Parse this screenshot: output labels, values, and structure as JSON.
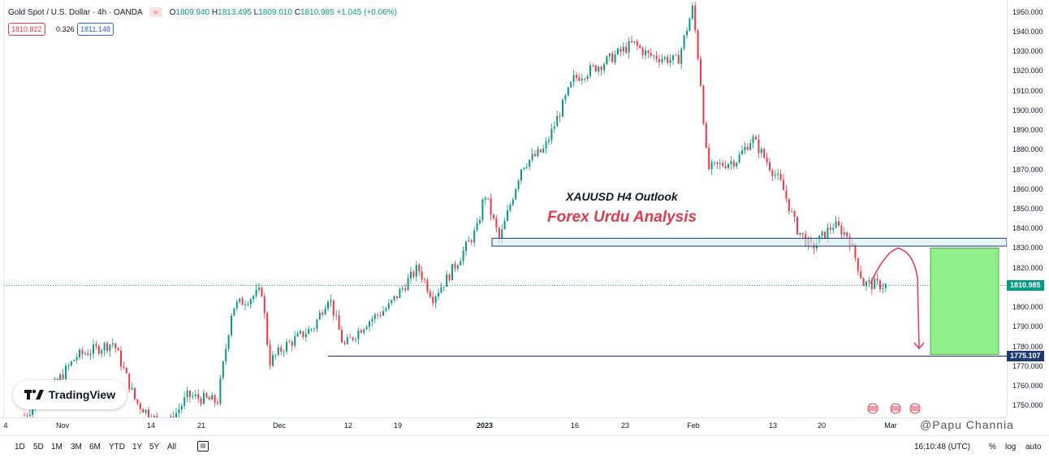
{
  "header": {
    "symbol": "Gold Spot / U.S. Dollar · 4h · OANDA",
    "ohlc": {
      "o_label": "O",
      "o": "1809.940",
      "h_label": "H",
      "h": "1813.495",
      "l_label": "L",
      "l": "1809.010",
      "c_label": "C",
      "c": "1810.985",
      "change": "+1.045 (+0.06%)"
    },
    "bid": "1810.822",
    "spread": "0.326",
    "ask": "1811.148"
  },
  "annotations": {
    "line1": "XAUUSD H4 Outlook",
    "line2": "Forex Urdu Analysis"
  },
  "price_labels": {
    "current": "1810.985",
    "target": "1775.107"
  },
  "logo_text": "TradingView",
  "watermark": "@Papu Channia",
  "bottom": {
    "ranges": [
      "1D",
      "5D",
      "1M",
      "3M",
      "6M",
      "YTD",
      "1Y",
      "5Y",
      "All"
    ],
    "time": "16:10:48 (UTC)",
    "percent": "%",
    "log": "log",
    "auto": "auto"
  },
  "colors": {
    "up": "#089981",
    "down": "#f23645",
    "zone": "#d6eef8",
    "target_box": "#8ff08a",
    "arrow": "#e03a4e",
    "line": "#1e3a6e"
  },
  "chart_data": {
    "type": "candlestick",
    "instrument": "XAUUSD",
    "timeframe": "4h",
    "y_ticks": [
      1750,
      1760,
      1770,
      1780,
      1790,
      1800,
      1810,
      1820,
      1830,
      1840,
      1850,
      1860,
      1870,
      1880,
      1890,
      1900,
      1910,
      1920,
      1930,
      1940,
      1950
    ],
    "ylim": [
      1744,
      1956
    ],
    "x_ticks": [
      {
        "label": "4"
      },
      {
        "label": "Nov"
      },
      {
        "label": "14"
      },
      {
        "label": "21"
      },
      {
        "label": "Dec"
      },
      {
        "label": "12"
      },
      {
        "label": "19"
      },
      {
        "label": "2023",
        "bold": true
      },
      {
        "label": "16"
      },
      {
        "label": "23"
      },
      {
        "label": "Feb"
      },
      {
        "label": "13"
      },
      {
        "label": "20"
      },
      {
        "label": "Mar"
      }
    ],
    "close_path": [
      {
        "d": "2022-11-03",
        "c": 1745
      },
      {
        "d": "2022-11-07",
        "c": 1760
      },
      {
        "d": "2022-11-10",
        "c": 1775
      },
      {
        "d": "2022-11-15",
        "c": 1782
      },
      {
        "d": "2022-11-18",
        "c": 1752
      },
      {
        "d": "2022-11-22",
        "c": 1738
      },
      {
        "d": "2022-11-25",
        "c": 1755
      },
      {
        "d": "2022-11-29",
        "c": 1752
      },
      {
        "d": "2022-12-01",
        "c": 1800
      },
      {
        "d": "2022-12-05",
        "c": 1808
      },
      {
        "d": "2022-12-06",
        "c": 1772
      },
      {
        "d": "2022-12-08",
        "c": 1780
      },
      {
        "d": "2022-12-12",
        "c": 1790
      },
      {
        "d": "2022-12-14",
        "c": 1806
      },
      {
        "d": "2022-12-16",
        "c": 1780
      },
      {
        "d": "2022-12-19",
        "c": 1792
      },
      {
        "d": "2022-12-22",
        "c": 1800
      },
      {
        "d": "2022-12-26",
        "c": 1820
      },
      {
        "d": "2022-12-28",
        "c": 1805
      },
      {
        "d": "2022-12-30",
        "c": 1815
      },
      {
        "d": "2023-01-03",
        "c": 1840
      },
      {
        "d": "2023-01-04",
        "c": 1858
      },
      {
        "d": "2023-01-06",
        "c": 1834
      },
      {
        "d": "2023-01-09",
        "c": 1872
      },
      {
        "d": "2023-01-12",
        "c": 1880
      },
      {
        "d": "2023-01-16",
        "c": 1916
      },
      {
        "d": "2023-01-20",
        "c": 1924
      },
      {
        "d": "2023-01-24",
        "c": 1934
      },
      {
        "d": "2023-01-26",
        "c": 1928
      },
      {
        "d": "2023-01-30",
        "c": 1925
      },
      {
        "d": "2023-02-01",
        "c": 1952
      },
      {
        "d": "2023-02-02",
        "c": 1918
      },
      {
        "d": "2023-02-03",
        "c": 1870
      },
      {
        "d": "2023-02-07",
        "c": 1875
      },
      {
        "d": "2023-02-09",
        "c": 1886
      },
      {
        "d": "2023-02-13",
        "c": 1862
      },
      {
        "d": "2023-02-15",
        "c": 1840
      },
      {
        "d": "2023-02-17",
        "c": 1830
      },
      {
        "d": "2023-02-20",
        "c": 1842
      },
      {
        "d": "2023-02-22",
        "c": 1836
      },
      {
        "d": "2023-02-24",
        "c": 1812
      },
      {
        "d": "2023-02-27",
        "c": 1811
      }
    ],
    "support_zone": {
      "from": 1831,
      "to": 1835
    },
    "target_line": 1775.107,
    "target_box": {
      "from": 1776,
      "to": 1830
    },
    "current_price": 1810.985
  }
}
